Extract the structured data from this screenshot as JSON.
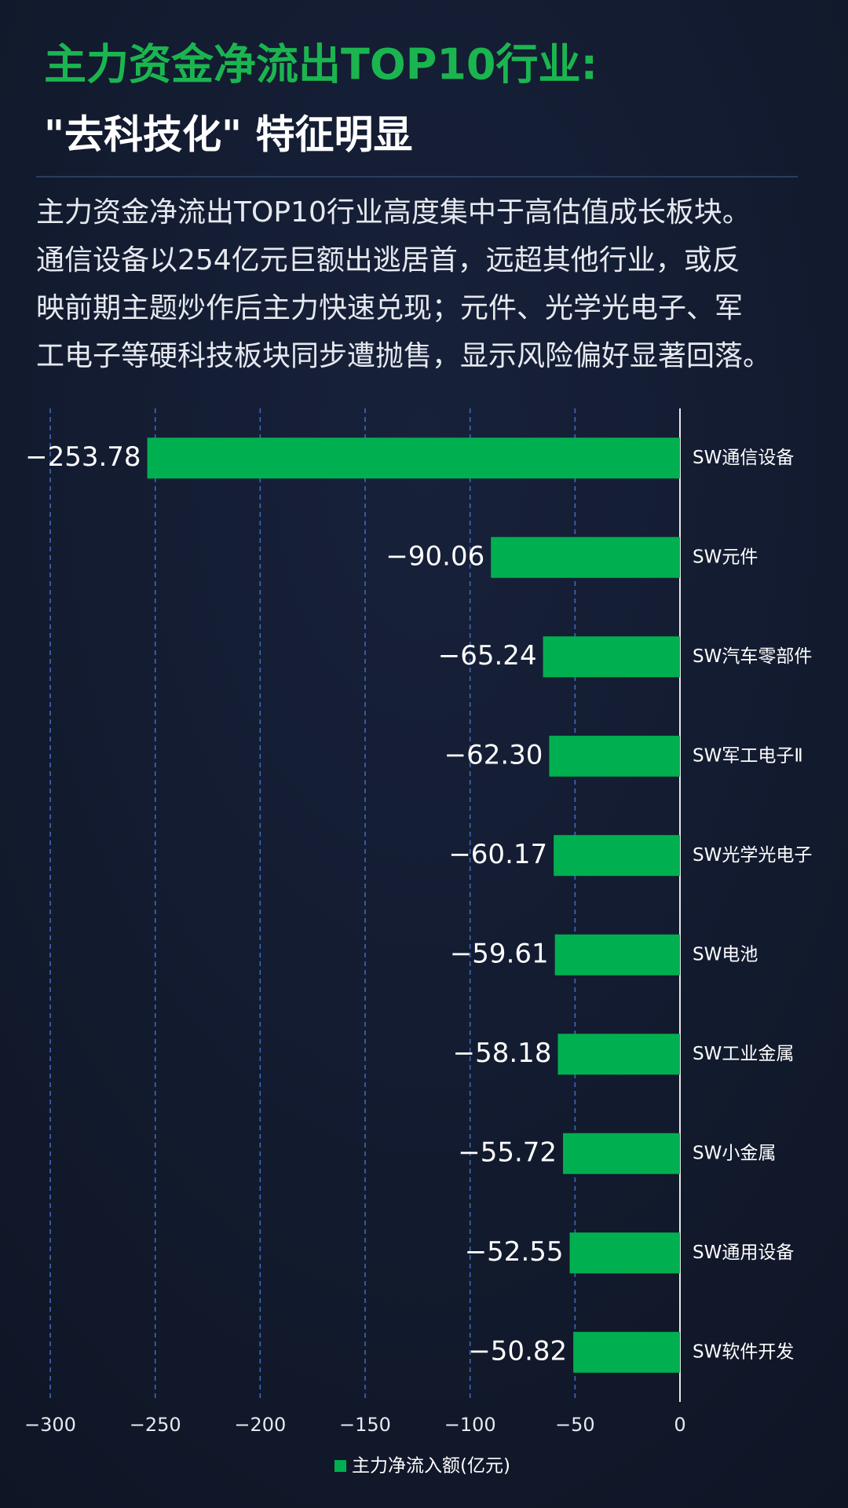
{
  "header": {
    "title": "主力资金净流出TOP10行业:",
    "subtitle": "\"去科技化\" 特征明显",
    "description": [
      "主力资金净流出TOP10行业高度集中于高估值成长板块。",
      "通信设备以254亿元巨额出逃居首，远超其他行业，或反",
      "映前期主题炒作后主力快速兑现；元件、光学光电子、军",
      "工电子等硬科技板块同步遭抛售，显示风险偏好显著回落。"
    ]
  },
  "chart_data": {
    "type": "bar",
    "orientation": "horizontal",
    "categories": [
      "SW通信设备",
      "SW元件",
      "SW汽车零部件",
      "SW军工电子Ⅱ",
      "SW光学光电子",
      "SW电池",
      "SW工业金属",
      "SW小金属",
      "SW通用设备",
      "SW软件开发"
    ],
    "series": [
      {
        "name": "主力净流入额(亿元)",
        "color": "#00b050",
        "values": [
          -253.78,
          -90.06,
          -65.24,
          -62.3,
          -60.17,
          -59.61,
          -58.18,
          -55.72,
          -52.55,
          -50.82
        ],
        "value_labels": [
          "−253.78",
          "−90.06",
          "−65.24",
          "−62.30",
          "−60.17",
          "−59.61",
          "−58.18",
          "−55.72",
          "−52.55",
          "−50.82"
        ]
      }
    ],
    "xlim": [
      -300,
      0
    ],
    "xticks": [
      {
        "value": -300,
        "label": "−300"
      },
      {
        "value": -250,
        "label": "−250"
      },
      {
        "value": -200,
        "label": "−200"
      },
      {
        "value": -150,
        "label": "−150"
      },
      {
        "value": -100,
        "label": "−100"
      },
      {
        "value": -50,
        "label": "−50"
      },
      0
    ],
    "grid": true,
    "legend": "bottom"
  }
}
